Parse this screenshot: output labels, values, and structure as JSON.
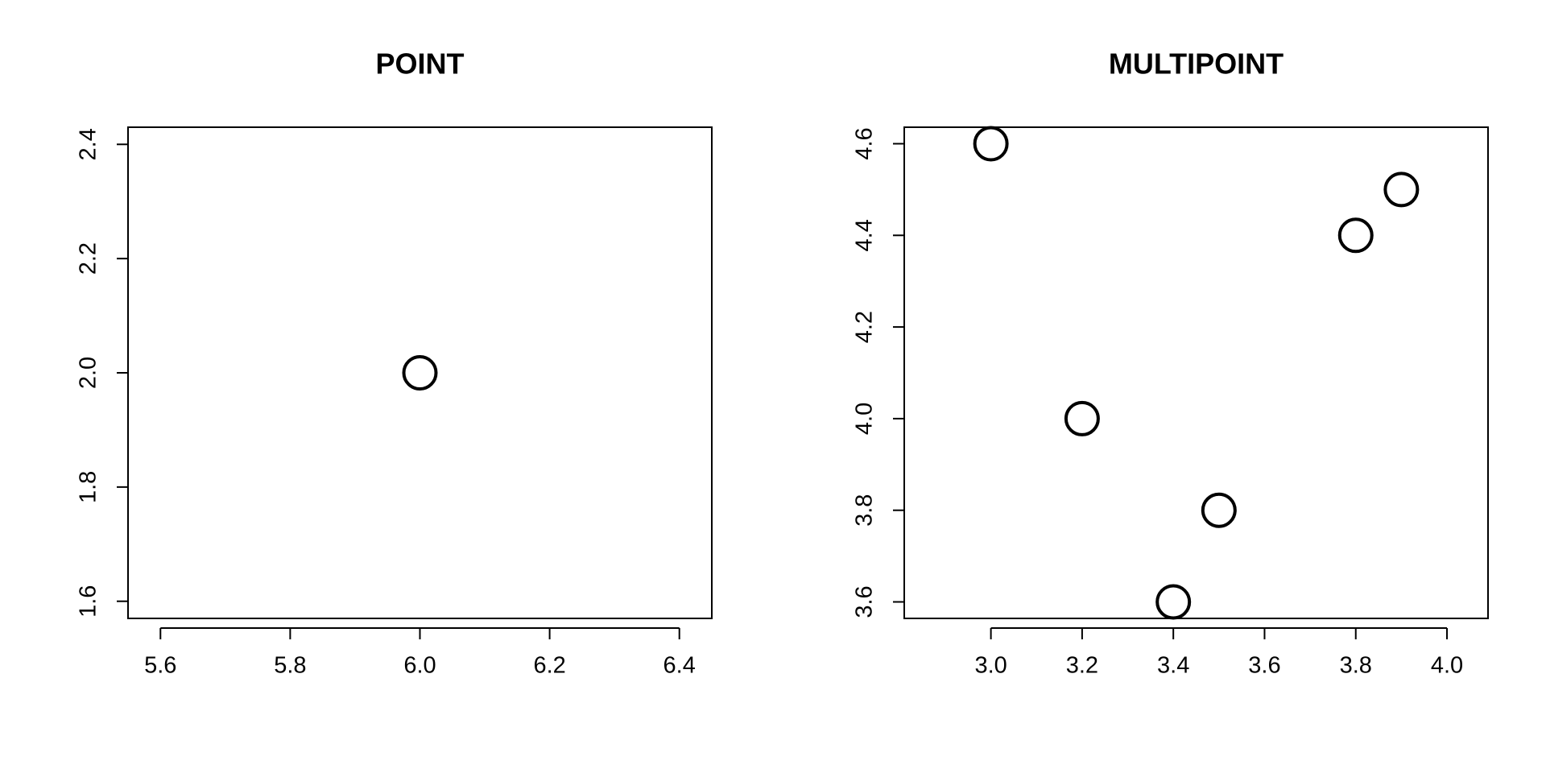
{
  "chart_data": [
    {
      "type": "scatter",
      "title": "POINT",
      "xlabel": "",
      "ylabel": "",
      "xlim": [
        5.55,
        6.45
      ],
      "ylim": [
        1.57,
        2.43
      ],
      "xticks": [
        5.6,
        5.8,
        6.0,
        6.2,
        6.4
      ],
      "xtick_labels": [
        "5.6",
        "5.8",
        "6.0",
        "6.2",
        "6.4"
      ],
      "yticks": [
        1.6,
        1.8,
        2.0,
        2.2,
        2.4
      ],
      "ytick_labels": [
        "1.6",
        "1.8",
        "2.0",
        "2.2",
        "2.4"
      ],
      "points": [
        {
          "x": 6.0,
          "y": 2.0
        }
      ],
      "marker": "open-circle",
      "grid": false
    },
    {
      "type": "scatter",
      "title": "MULTIPOINT",
      "xlabel": "",
      "ylabel": "",
      "xlim": [
        2.81,
        4.09
      ],
      "ylim": [
        3.564,
        4.636
      ],
      "xticks": [
        3.0,
        3.2,
        3.4,
        3.6,
        3.8,
        4.0
      ],
      "xtick_labels": [
        "3.0",
        "3.2",
        "3.4",
        "3.6",
        "3.8",
        "4.0"
      ],
      "yticks": [
        3.6,
        3.8,
        4.0,
        4.2,
        4.4,
        4.6
      ],
      "ytick_labels": [
        "3.6",
        "3.8",
        "4.0",
        "4.2",
        "4.4",
        "4.6"
      ],
      "points": [
        {
          "x": 3.0,
          "y": 4.6
        },
        {
          "x": 3.2,
          "y": 4.0
        },
        {
          "x": 3.4,
          "y": 3.6
        },
        {
          "x": 3.5,
          "y": 3.8
        },
        {
          "x": 3.8,
          "y": 4.4
        },
        {
          "x": 3.9,
          "y": 4.5
        }
      ],
      "marker": "open-circle",
      "grid": false
    }
  ]
}
